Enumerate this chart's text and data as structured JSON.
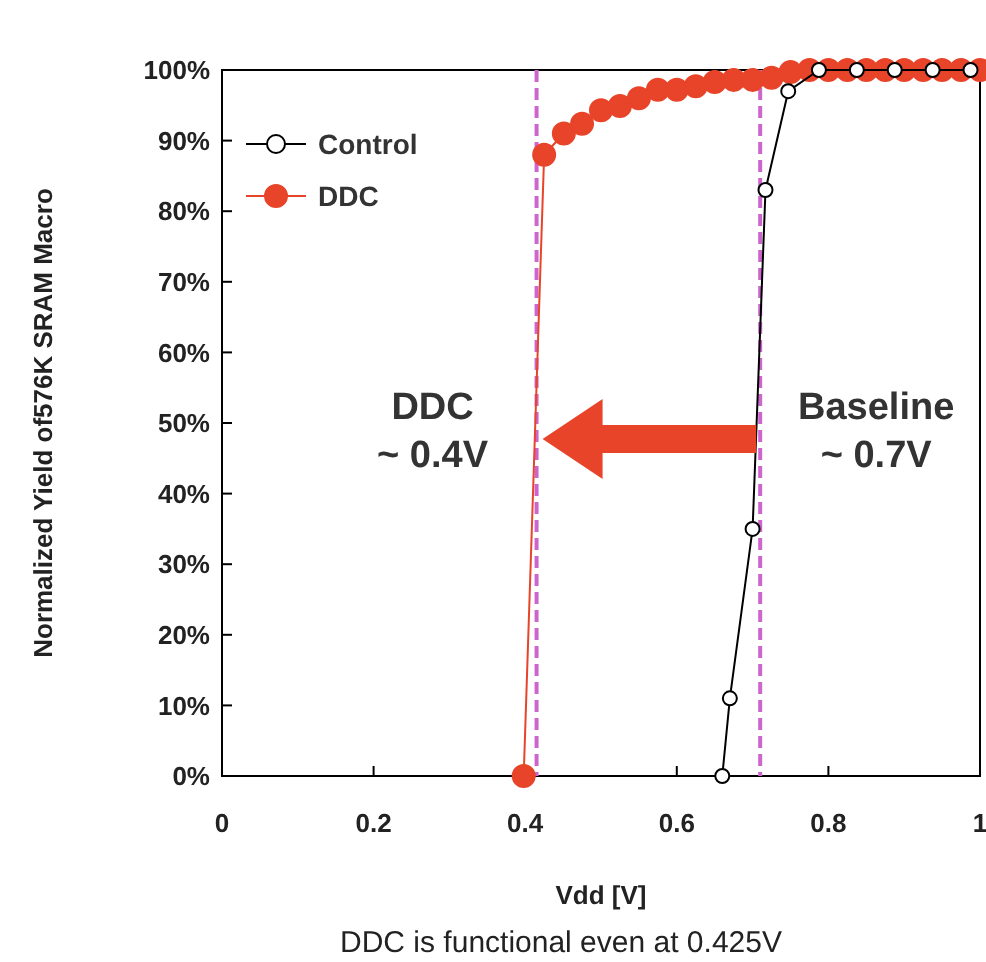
{
  "chart_data": {
    "type": "line",
    "xlabel": "Vdd [V]",
    "ylabel": "Normalized Yield of576K SRAM Macro",
    "xlim": [
      0,
      1
    ],
    "xticks": [
      0,
      0.2,
      0.4,
      0.6,
      0.8,
      {
        "value": 1,
        "label": "1"
      }
    ],
    "ylim": [
      0,
      100
    ],
    "yticks": [
      {
        "value": 0,
        "label": "0%"
      },
      {
        "value": 10,
        "label": "10%"
      },
      {
        "value": 20,
        "label": "20%"
      },
      {
        "value": 30,
        "label": "30%"
      },
      {
        "value": 40,
        "label": "40%"
      },
      {
        "value": 50,
        "label": "50%"
      },
      {
        "value": 60,
        "label": "60%"
      },
      {
        "value": 70,
        "label": "70%"
      },
      {
        "value": 80,
        "label": "80%"
      },
      {
        "value": 90,
        "label": "90%"
      },
      {
        "value": 100,
        "label": "100%"
      }
    ],
    "grid": false,
    "legend": "top left",
    "marker": "circle",
    "line_style": "solid",
    "series": [
      {
        "name": "Control",
        "color": "#000000",
        "x": [
          0.66,
          0.67,
          0.7,
          0.717,
          0.747,
          0.7875,
          0.8375,
          0.8875,
          0.9375,
          0.9875
        ],
        "values": [
          0,
          11,
          35,
          83,
          97,
          100,
          100,
          100,
          100,
          100
        ]
      },
      {
        "name": "DDC",
        "color": "#e8442a",
        "x": [
          0.398,
          0.425,
          0.451,
          0.475,
          0.5,
          0.525,
          0.55,
          0.575,
          0.6,
          0.625,
          0.65,
          0.675,
          0.7,
          0.725,
          0.75,
          0.775,
          0.8,
          0.825,
          0.85,
          0.875,
          0.9,
          0.925,
          0.95,
          0.975,
          1
        ],
        "values": [
          0,
          88,
          91,
          92.4,
          94.3,
          94.9,
          96,
          97.2,
          97.2,
          97.7,
          98.3,
          98.6,
          98.6,
          98.9,
          99.7,
          100,
          100,
          100,
          100,
          100,
          100,
          100,
          100,
          100,
          100
        ]
      }
    ],
    "ref_lines": [
      {
        "axis": "x",
        "value": 0.415,
        "color": "#cc66cc",
        "line_style": "dashed"
      },
      {
        "axis": "x",
        "value": 0.71,
        "color": "#cc66cc",
        "line_style": "dashed"
      }
    ],
    "annotations": [
      {
        "text": "DDC\n~ 0.4V",
        "x": 0.415,
        "y": 50
      },
      {
        "text": "Baseline\n~ 0.7V",
        "x": 0.71,
        "y": 50
      },
      "DDC is functional even at 0.425V"
    ]
  }
}
